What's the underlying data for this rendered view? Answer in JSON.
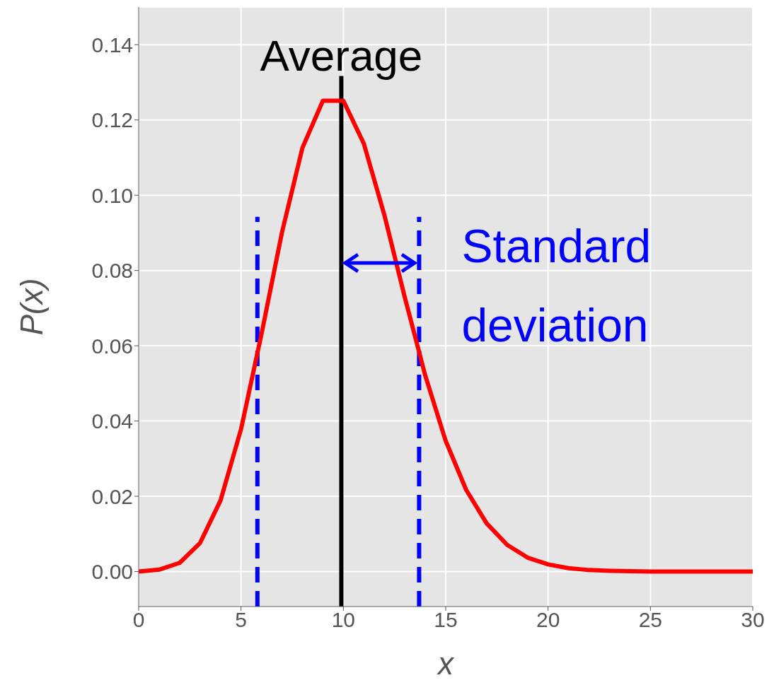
{
  "chart_data": {
    "type": "line",
    "xlabel": "x",
    "ylabel": "P(x)",
    "x": [
      0,
      1,
      2,
      3,
      4,
      5,
      6,
      7,
      8,
      9,
      10,
      11,
      12,
      13,
      14,
      15,
      16,
      17,
      18,
      19,
      20,
      21,
      22,
      23,
      24,
      25,
      26,
      27,
      28,
      29,
      30
    ],
    "series": [
      {
        "color": "#ff0000",
        "values": [
          0.0,
          0.0005,
          0.0023,
          0.0076,
          0.0189,
          0.0378,
          0.0631,
          0.0901,
          0.1126,
          0.1251,
          0.1251,
          0.1137,
          0.0948,
          0.0729,
          0.0521,
          0.0347,
          0.0217,
          0.0128,
          0.0071,
          0.0037,
          0.0019,
          0.0009,
          0.0004,
          0.0002,
          0.0001,
          0.0,
          0.0,
          0.0,
          0.0,
          0.0,
          0.0
        ]
      }
    ],
    "xlim": [
      0,
      30
    ],
    "xticks": [
      0,
      5,
      10,
      15,
      20,
      25,
      30
    ],
    "ylim": [
      -0.0093,
      0.15
    ],
    "yticks": [
      {
        "value": 0,
        "label": "0.00"
      },
      {
        "value": 0.02,
        "label": "0.02"
      },
      {
        "value": 0.04,
        "label": "0.04"
      },
      {
        "value": 0.06,
        "label": "0.06"
      },
      {
        "value": 0.08,
        "label": "0.08"
      },
      {
        "value": 0.1,
        "label": "0.10"
      },
      {
        "value": 0.12,
        "label": "0.12"
      },
      {
        "value": 0.14,
        "label": "0.14"
      }
    ],
    "ref_lines": [
      {
        "axis": "x",
        "value": 9.9,
        "label": "Average",
        "color": "#000000",
        "line_style": "solid"
      },
      {
        "axis": "x",
        "value": 5.8,
        "color": "#0000ff",
        "line_style": "dashed"
      },
      {
        "axis": "x",
        "value": 13.7,
        "color": "#0000ff",
        "line_style": "dashed"
      }
    ],
    "annotations": [
      {
        "text": "Standard deviation",
        "x": 13.7,
        "y": 0.082
      }
    ],
    "grid": true,
    "marker": "none",
    "line_style": "solid"
  }
}
